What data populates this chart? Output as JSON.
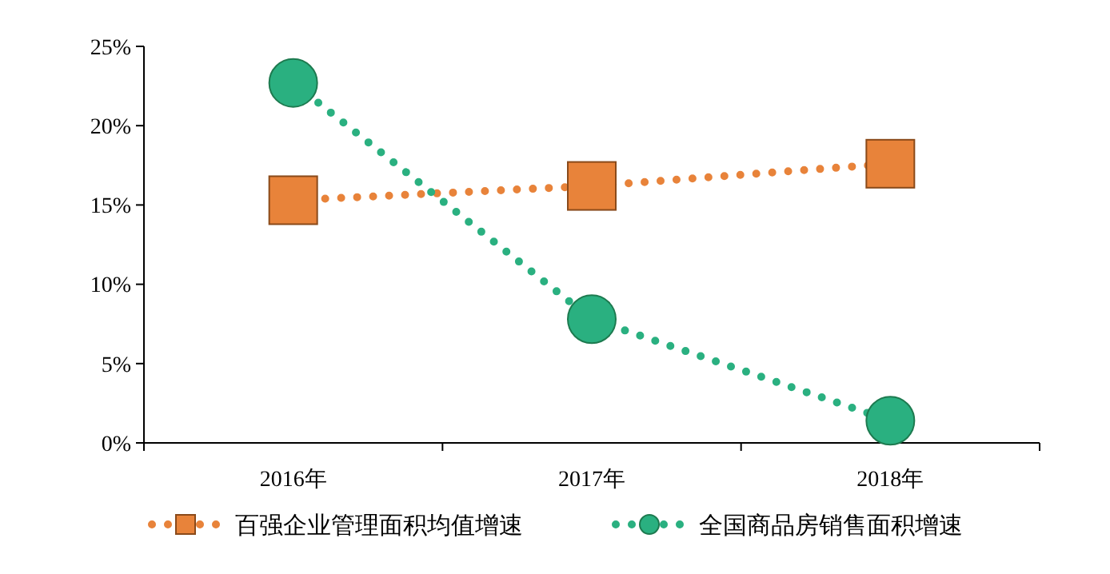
{
  "chart_data": {
    "type": "line",
    "categories": [
      "2016年",
      "2017年",
      "2018年"
    ],
    "series": [
      {
        "name": "百强企业管理面积均值增速",
        "color": "#e8833a",
        "values": [
          15.3,
          16.2,
          17.6
        ],
        "marker": "square"
      },
      {
        "name": "全国商品房销售面积增速",
        "color": "#2ab080",
        "values": [
          22.7,
          7.8,
          1.4
        ],
        "marker": "circle"
      }
    ],
    "ylim": [
      0,
      25
    ],
    "yticks": [
      {
        "value": 0,
        "label": "0%"
      },
      {
        "value": 5,
        "label": "5%"
      },
      {
        "value": 10,
        "label": "10%"
      },
      {
        "value": 15,
        "label": "15%"
      },
      {
        "value": 20,
        "label": "20%"
      },
      {
        "value": 25,
        "label": "25%"
      }
    ],
    "line_style": "dotted",
    "legend": "bottom",
    "grid": false
  }
}
